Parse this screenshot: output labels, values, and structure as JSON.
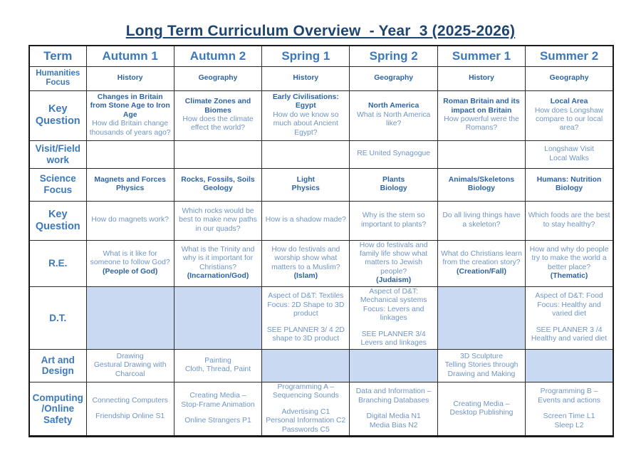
{
  "title": "Long Term Curriculum Overview  - Year  3 (2025-2026)",
  "colors": {
    "title": "#1e4571",
    "header_text": "#3c79bb",
    "bold_text": "#2e64a4",
    "body_text": "#7095c5",
    "shaded_cell": "#c9d9f1"
  },
  "table": {
    "columns": [
      "Term",
      "Autumn 1",
      "Autumn 2",
      "Spring 1",
      "Spring 2",
      "Summer 1",
      "Summer 2"
    ],
    "rows": [
      {
        "id": "humanities-focus",
        "label": [
          "Humanities",
          "Focus"
        ],
        "cells": [
          {
            "shaded": false,
            "lines": [
              {
                "t": "History",
                "b": 1
              }
            ]
          },
          {
            "shaded": false,
            "lines": [
              {
                "t": "Geography",
                "b": 1
              }
            ]
          },
          {
            "shaded": false,
            "lines": [
              {
                "t": "History",
                "b": 1
              }
            ]
          },
          {
            "shaded": false,
            "lines": [
              {
                "t": "Geography",
                "b": 1
              }
            ]
          },
          {
            "shaded": false,
            "lines": [
              {
                "t": "History",
                "b": 1
              }
            ]
          },
          {
            "shaded": false,
            "lines": [
              {
                "t": "Geography",
                "b": 1
              }
            ]
          }
        ]
      },
      {
        "id": "key-question-1",
        "label": [
          "Key",
          "Question"
        ],
        "cells": [
          {
            "shaded": false,
            "lines": [
              {
                "t": "Changes in Britain from Stone Age to Iron Age",
                "b": 1
              },
              {
                "t": "How did Britain change thousands of years ago?"
              }
            ]
          },
          {
            "shaded": false,
            "lines": [
              {
                "t": "Climate Zones and Biomes",
                "b": 1
              },
              {
                "t": "How does the climate effect the world?"
              }
            ]
          },
          {
            "shaded": false,
            "lines": [
              {
                "t": "Early Civilisations: Egypt",
                "b": 1
              },
              {
                "t": "How do we know so much about Ancient Egypt?"
              }
            ]
          },
          {
            "shaded": false,
            "lines": [
              {
                "t": "North America",
                "b": 1
              },
              {
                "t": "What is North America like?"
              }
            ]
          },
          {
            "shaded": false,
            "lines": [
              {
                "t": "Roman Britain and its impact on Britain",
                "b": 1
              },
              {
                "t": "How powerful were the Romans?"
              }
            ]
          },
          {
            "shaded": false,
            "lines": [
              {
                "t": "Local Area",
                "b": 1
              },
              {
                "t": "How does Longshaw compare to our local area?"
              }
            ]
          }
        ]
      },
      {
        "id": "visit-field-work",
        "label": [
          "Visit/Field",
          "work"
        ],
        "cells": [
          {
            "shaded": false,
            "lines": []
          },
          {
            "shaded": false,
            "lines": []
          },
          {
            "shaded": false,
            "lines": []
          },
          {
            "shaded": false,
            "lines": [
              {
                "t": "RE United Synagogue"
              }
            ]
          },
          {
            "shaded": false,
            "lines": []
          },
          {
            "shaded": false,
            "lines": [
              {
                "t": "Longshaw Visit"
              },
              {
                "t": "Local Walks"
              }
            ]
          }
        ]
      },
      {
        "id": "science-focus",
        "label": [
          "Science",
          "Focus"
        ],
        "cells": [
          {
            "shaded": false,
            "lines": [
              {
                "t": "Magnets and Forces",
                "b": 1
              },
              {
                "t": "Physics",
                "b": 1
              }
            ]
          },
          {
            "shaded": false,
            "lines": [
              {
                "t": "Rocks, Fossils, Soils",
                "b": 1
              },
              {
                "t": "Geology",
                "b": 1
              }
            ]
          },
          {
            "shaded": false,
            "lines": [
              {
                "t": "Light",
                "b": 1
              },
              {
                "t": "Physics",
                "b": 1
              }
            ]
          },
          {
            "shaded": false,
            "lines": [
              {
                "t": "Plants",
                "b": 1
              },
              {
                "t": "Biology",
                "b": 1
              }
            ]
          },
          {
            "shaded": false,
            "lines": [
              {
                "t": "Animals/Skeletons",
                "b": 1
              },
              {
                "t": "Biology",
                "b": 1
              }
            ]
          },
          {
            "shaded": false,
            "lines": [
              {
                "t": "Humans: Nutrition",
                "b": 1
              },
              {
                "t": "Biology",
                "b": 1
              }
            ]
          }
        ]
      },
      {
        "id": "key-question-2",
        "label": [
          "Key",
          "Question"
        ],
        "cells": [
          {
            "shaded": false,
            "lines": [
              {
                "t": "How do magnets work?"
              }
            ]
          },
          {
            "shaded": false,
            "lines": [
              {
                "t": "Which rocks would be best to make new paths in our quads?"
              }
            ]
          },
          {
            "shaded": false,
            "lines": [
              {
                "t": "How is a shadow made?"
              }
            ]
          },
          {
            "shaded": false,
            "lines": [
              {
                "t": "Why is the stem so important to plants?"
              }
            ]
          },
          {
            "shaded": false,
            "lines": [
              {
                "t": "Do all living things have a skeleton?"
              }
            ]
          },
          {
            "shaded": false,
            "lines": [
              {
                "t": "Which foods are the best to stay healthy?"
              }
            ]
          }
        ]
      },
      {
        "id": "re",
        "label": [
          "R.E."
        ],
        "cells": [
          {
            "shaded": false,
            "lines": [
              {
                "t": "What is it like for someone to follow God?"
              },
              {
                "t": "(People of God)",
                "b": 1
              }
            ]
          },
          {
            "shaded": false,
            "lines": [
              {
                "t": "What is the Trinity and why is it important for Christians?"
              },
              {
                "t": "(Incarnation/God)",
                "b": 1
              }
            ]
          },
          {
            "shaded": false,
            "lines": [
              {
                "t": "How do festivals and worship show what matters to a Muslim?"
              },
              {
                "t": "(Islam)",
                "b": 1
              }
            ]
          },
          {
            "shaded": false,
            "lines": [
              {
                "t": "How do festivals and family life show what matters to Jewish people?"
              },
              {
                "t": "(Judaism)",
                "b": 1
              }
            ]
          },
          {
            "shaded": false,
            "lines": [
              {
                "t": "What do Christians learn from the creation story?"
              },
              {
                "t": "(Creation/Fall)",
                "b": 1
              }
            ]
          },
          {
            "shaded": false,
            "lines": [
              {
                "t": "How and why do people try to make the world a better place?"
              },
              {
                "t": "(Thematic)",
                "b": 1
              }
            ]
          }
        ]
      },
      {
        "id": "dt",
        "label": [
          "D.T."
        ],
        "cells": [
          {
            "shaded": true,
            "lines": []
          },
          {
            "shaded": true,
            "lines": []
          },
          {
            "shaded": false,
            "lines": [
              {
                "t": "Aspect of D&T: Textiles"
              },
              {
                "t": "Focus: 2D Shape  to 3D product"
              },
              {
                "t": "",
                "gap": 1
              },
              {
                "t": "SEE PLANNER 3/ 4 2D shape to 3D product"
              }
            ]
          },
          {
            "shaded": false,
            "lines": [
              {
                "t": "Aspect of D&T:"
              },
              {
                "t": "Mechanical systems"
              },
              {
                "t": "Focus:  Levers and linkages"
              },
              {
                "t": "",
                "gap": 1
              },
              {
                "t": "SEE PLANNER 3/4 Levers and linkages"
              }
            ]
          },
          {
            "shaded": true,
            "lines": []
          },
          {
            "shaded": false,
            "lines": [
              {
                "t": "Aspect of D&T: Food"
              },
              {
                "t": "Focus:  Healthy and varied diet"
              },
              {
                "t": "",
                "gap": 1
              },
              {
                "t": "SEE PLANNER 3 /4"
              },
              {
                "t": "Healthy and varied diet"
              }
            ]
          }
        ]
      },
      {
        "id": "art-and-design",
        "label": [
          "Art and",
          "Design"
        ],
        "cells": [
          {
            "shaded": false,
            "lines": [
              {
                "t": "Drawing"
              },
              {
                "t": "Gestural Drawing with Charcoal"
              }
            ]
          },
          {
            "shaded": false,
            "lines": [
              {
                "t": "Painting"
              },
              {
                "t": "Cloth, Thread, Paint"
              }
            ]
          },
          {
            "shaded": true,
            "lines": []
          },
          {
            "shaded": true,
            "lines": []
          },
          {
            "shaded": false,
            "lines": [
              {
                "t": "3D Sculpture"
              },
              {
                "t": "Telling Stories through"
              },
              {
                "t": "Drawing and Making"
              }
            ]
          },
          {
            "shaded": true,
            "lines": []
          }
        ]
      },
      {
        "id": "computing-online-safety",
        "label": [
          "Computing",
          "/Online",
          "Safety"
        ],
        "cells": [
          {
            "shaded": false,
            "lines": [
              {
                "t": "Connecting Computers"
              },
              {
                "t": "",
                "gap": 1
              },
              {
                "t": "Friendship Online S1"
              }
            ]
          },
          {
            "shaded": false,
            "lines": [
              {
                "t": "Creating Media –"
              },
              {
                "t": "Stop-Frame Animation"
              },
              {
                "t": "",
                "gap": 1
              },
              {
                "t": "Online Strangers P1"
              }
            ]
          },
          {
            "shaded": false,
            "lines": [
              {
                "t": "Programming A –"
              },
              {
                "t": "Sequencing Sounds"
              },
              {
                "t": "",
                "gap": 1
              },
              {
                "t": "Advertising C1"
              },
              {
                "t": "Personal Information C2"
              },
              {
                "t": "Passwords C5"
              }
            ]
          },
          {
            "shaded": false,
            "lines": [
              {
                "t": "Data and Information –"
              },
              {
                "t": "Branching Databases"
              },
              {
                "t": "",
                "gap": 1
              },
              {
                "t": "Digital Media N1"
              },
              {
                "t": "Media Bias N2"
              }
            ]
          },
          {
            "shaded": false,
            "lines": [
              {
                "t": "Creating Media –"
              },
              {
                "t": "Desktop Publishing"
              }
            ]
          },
          {
            "shaded": false,
            "lines": [
              {
                "t": "Programming B –"
              },
              {
                "t": "Events and actions"
              },
              {
                "t": "",
                "gap": 1
              },
              {
                "t": "Screen Time L1"
              },
              {
                "t": "Sleep L2"
              }
            ]
          }
        ]
      }
    ]
  }
}
